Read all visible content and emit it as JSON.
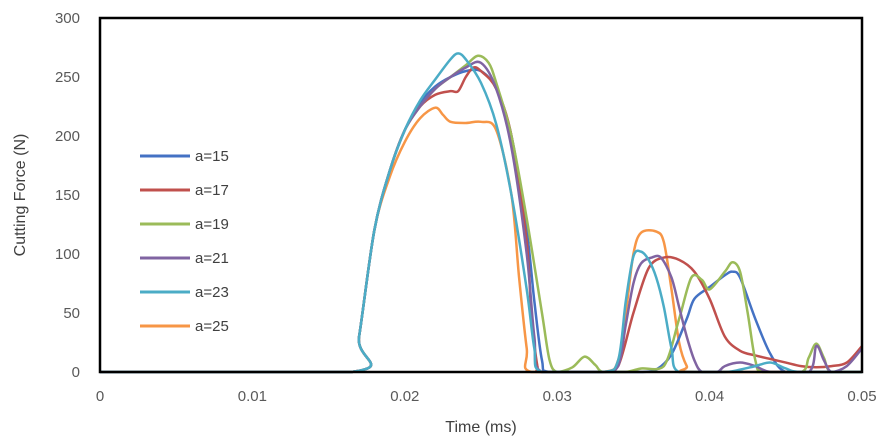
{
  "chart_data": {
    "type": "line",
    "title": "",
    "xlabel": "Time (ms)",
    "ylabel": "Cutting Force (N)",
    "xlim": [
      0,
      0.05
    ],
    "ylim": [
      0,
      300
    ],
    "xticks": [
      "0",
      "0.01",
      "0.02",
      "0.03",
      "0.04",
      "0.05"
    ],
    "yticks": [
      "0",
      "50",
      "100",
      "150",
      "200",
      "250",
      "300"
    ],
    "grid": false,
    "legend_position": "left",
    "series": [
      {
        "name": "a=15",
        "color": "#4472C4",
        "points": [
          [
            0,
            0
          ],
          [
            0.0165,
            0
          ],
          [
            0.017,
            30
          ],
          [
            0.018,
            120
          ],
          [
            0.019,
            170
          ],
          [
            0.02,
            205
          ],
          [
            0.021,
            228
          ],
          [
            0.022,
            242
          ],
          [
            0.023,
            250
          ],
          [
            0.024,
            255
          ],
          [
            0.025,
            255
          ],
          [
            0.026,
            240
          ],
          [
            0.027,
            200
          ],
          [
            0.028,
            120
          ],
          [
            0.0285,
            60
          ],
          [
            0.029,
            10
          ],
          [
            0.0295,
            0
          ],
          [
            0.033,
            0
          ],
          [
            0.0355,
            0
          ],
          [
            0.0365,
            2
          ],
          [
            0.0375,
            15
          ],
          [
            0.0385,
            45
          ],
          [
            0.039,
            62
          ],
          [
            0.04,
            72
          ],
          [
            0.041,
            82
          ],
          [
            0.0415,
            85
          ],
          [
            0.042,
            80
          ],
          [
            0.043,
            45
          ],
          [
            0.044,
            15
          ],
          [
            0.045,
            0
          ],
          [
            0.047,
            0
          ],
          [
            0.05,
            0
          ]
        ]
      },
      {
        "name": "a=17",
        "color": "#C0504D",
        "points": [
          [
            0,
            0
          ],
          [
            0.0165,
            0
          ],
          [
            0.017,
            30
          ],
          [
            0.018,
            120
          ],
          [
            0.019,
            170
          ],
          [
            0.02,
            205
          ],
          [
            0.021,
            225
          ],
          [
            0.022,
            235
          ],
          [
            0.023,
            238
          ],
          [
            0.0235,
            238
          ],
          [
            0.024,
            250
          ],
          [
            0.0245,
            258
          ],
          [
            0.025,
            255
          ],
          [
            0.026,
            240
          ],
          [
            0.027,
            200
          ],
          [
            0.028,
            110
          ],
          [
            0.0283,
            50
          ],
          [
            0.0287,
            5
          ],
          [
            0.029,
            0
          ],
          [
            0.033,
            0
          ],
          [
            0.034,
            5
          ],
          [
            0.035,
            50
          ],
          [
            0.036,
            88
          ],
          [
            0.037,
            97
          ],
          [
            0.038,
            95
          ],
          [
            0.039,
            85
          ],
          [
            0.04,
            62
          ],
          [
            0.041,
            30
          ],
          [
            0.042,
            18
          ],
          [
            0.043,
            14
          ],
          [
            0.044,
            11
          ],
          [
            0.045,
            8
          ],
          [
            0.046,
            5
          ],
          [
            0.047,
            4
          ],
          [
            0.048,
            5
          ],
          [
            0.049,
            8
          ],
          [
            0.05,
            22
          ]
        ]
      },
      {
        "name": "a=19",
        "color": "#9BBB59",
        "points": [
          [
            0,
            0
          ],
          [
            0.0165,
            0
          ],
          [
            0.017,
            30
          ],
          [
            0.018,
            120
          ],
          [
            0.019,
            170
          ],
          [
            0.02,
            205
          ],
          [
            0.021,
            225
          ],
          [
            0.022,
            240
          ],
          [
            0.023,
            250
          ],
          [
            0.024,
            260
          ],
          [
            0.0248,
            268
          ],
          [
            0.0255,
            262
          ],
          [
            0.026,
            245
          ],
          [
            0.027,
            200
          ],
          [
            0.028,
            130
          ],
          [
            0.029,
            50
          ],
          [
            0.0295,
            10
          ],
          [
            0.03,
            0
          ],
          [
            0.031,
            4
          ],
          [
            0.0318,
            13
          ],
          [
            0.0325,
            6
          ],
          [
            0.033,
            0
          ],
          [
            0.0345,
            0
          ],
          [
            0.0355,
            3
          ],
          [
            0.037,
            5
          ],
          [
            0.038,
            45
          ],
          [
            0.0388,
            80
          ],
          [
            0.0395,
            78
          ],
          [
            0.04,
            70
          ],
          [
            0.041,
            85
          ],
          [
            0.0415,
            93
          ],
          [
            0.042,
            85
          ],
          [
            0.0425,
            50
          ],
          [
            0.043,
            10
          ],
          [
            0.0435,
            0
          ],
          [
            0.046,
            0
          ],
          [
            0.0465,
            12
          ],
          [
            0.047,
            24
          ],
          [
            0.0475,
            12
          ],
          [
            0.048,
            0
          ],
          [
            0.05,
            0
          ]
        ]
      },
      {
        "name": "a=21",
        "color": "#8064A2",
        "points": [
          [
            0,
            0
          ],
          [
            0.0165,
            0
          ],
          [
            0.017,
            30
          ],
          [
            0.018,
            120
          ],
          [
            0.019,
            170
          ],
          [
            0.02,
            205
          ],
          [
            0.021,
            225
          ],
          [
            0.022,
            240
          ],
          [
            0.023,
            250
          ],
          [
            0.024,
            258
          ],
          [
            0.025,
            262
          ],
          [
            0.026,
            240
          ],
          [
            0.027,
            190
          ],
          [
            0.028,
            100
          ],
          [
            0.0285,
            30
          ],
          [
            0.029,
            0
          ],
          [
            0.033,
            0
          ],
          [
            0.034,
            5
          ],
          [
            0.0345,
            40
          ],
          [
            0.035,
            75
          ],
          [
            0.0355,
            92
          ],
          [
            0.0362,
            97
          ],
          [
            0.0368,
            97
          ],
          [
            0.0375,
            80
          ],
          [
            0.038,
            55
          ],
          [
            0.0385,
            30
          ],
          [
            0.039,
            10
          ],
          [
            0.0395,
            0
          ],
          [
            0.0405,
            0
          ],
          [
            0.041,
            5
          ],
          [
            0.042,
            8
          ],
          [
            0.043,
            5
          ],
          [
            0.044,
            0
          ],
          [
            0.0465,
            0
          ],
          [
            0.047,
            22
          ],
          [
            0.0475,
            10
          ],
          [
            0.048,
            0
          ],
          [
            0.049,
            5
          ],
          [
            0.05,
            20
          ]
        ]
      },
      {
        "name": "a=23",
        "color": "#4BACC6",
        "points": [
          [
            0,
            0
          ],
          [
            0.0165,
            0
          ],
          [
            0.017,
            30
          ],
          [
            0.018,
            120
          ],
          [
            0.019,
            170
          ],
          [
            0.02,
            205
          ],
          [
            0.021,
            230
          ],
          [
            0.022,
            248
          ],
          [
            0.023,
            265
          ],
          [
            0.0235,
            270
          ],
          [
            0.024,
            265
          ],
          [
            0.025,
            245
          ],
          [
            0.026,
            210
          ],
          [
            0.027,
            150
          ],
          [
            0.028,
            70
          ],
          [
            0.0285,
            20
          ],
          [
            0.029,
            0
          ],
          [
            0.033,
            0
          ],
          [
            0.034,
            10
          ],
          [
            0.0345,
            60
          ],
          [
            0.035,
            98
          ],
          [
            0.0355,
            102
          ],
          [
            0.036,
            95
          ],
          [
            0.0365,
            80
          ],
          [
            0.037,
            55
          ],
          [
            0.0375,
            20
          ],
          [
            0.038,
            0
          ],
          [
            0.041,
            0
          ],
          [
            0.042,
            2
          ],
          [
            0.043,
            5
          ],
          [
            0.044,
            8
          ],
          [
            0.045,
            3
          ],
          [
            0.046,
            0
          ],
          [
            0.05,
            0
          ]
        ]
      },
      {
        "name": "a=25",
        "color": "#F79646",
        "points": [
          [
            0,
            0
          ],
          [
            0.0165,
            0
          ],
          [
            0.017,
            30
          ],
          [
            0.018,
            120
          ],
          [
            0.019,
            165
          ],
          [
            0.02,
            195
          ],
          [
            0.021,
            215
          ],
          [
            0.022,
            224
          ],
          [
            0.0225,
            218
          ],
          [
            0.023,
            212
          ],
          [
            0.024,
            211
          ],
          [
            0.025,
            212
          ],
          [
            0.026,
            205
          ],
          [
            0.027,
            150
          ],
          [
            0.0275,
            80
          ],
          [
            0.028,
            20
          ],
          [
            0.0283,
            0
          ],
          [
            0.033,
            0
          ],
          [
            0.034,
            10
          ],
          [
            0.0345,
            50
          ],
          [
            0.035,
            100
          ],
          [
            0.0355,
            118
          ],
          [
            0.0365,
            119
          ],
          [
            0.037,
            110
          ],
          [
            0.0375,
            70
          ],
          [
            0.038,
            25
          ],
          [
            0.0385,
            5
          ],
          [
            0.039,
            0
          ],
          [
            0.05,
            0
          ]
        ]
      }
    ]
  }
}
